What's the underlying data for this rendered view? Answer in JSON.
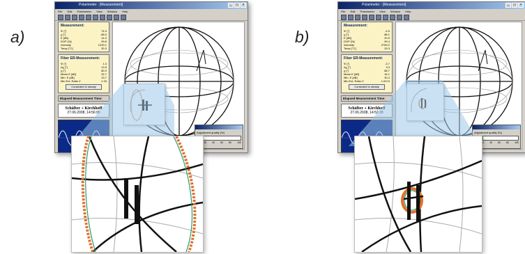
{
  "panels": [
    {
      "letter": "a)",
      "app_title": "Polarimeter - [Measurement]",
      "menu": [
        "File",
        "Edit",
        "Polarimeter",
        "View",
        "Window",
        "Help"
      ],
      "measurement": {
        "title": "Measurement:",
        "rows": [
          {
            "k": "Ψ [°]",
            "v": "74.3"
          },
          {
            "k": "χ [°]",
            "v": "-68.0"
          },
          {
            "k": "E [dB]",
            "v": "14.3"
          },
          {
            "k": "DOP [%]",
            "v": "99.8"
          },
          {
            "k": "Intensity",
            "v": "1230.1"
          },
          {
            "k": "Temp [°C]",
            "v": "30.3"
          }
        ]
      },
      "fiber": {
        "title": "Fiber ER-Measurement:",
        "rows": [
          {
            "k": "Ψ [°]",
            "v": "1.3"
          },
          {
            "k": "Δχ [°]",
            "v": "13.5"
          },
          {
            "k": "χ [°]",
            "v": "80.3"
          },
          {
            "k": "Mean E [dB]",
            "v": "32.7"
          },
          {
            "k": "Min. E [dB]",
            "v": "13.7"
          },
          {
            "k": "Min Ext. Ratio V",
            "v": "1.33"
          }
        ],
        "button": "Constraint to steady"
      },
      "elapsed": "Elapsed Measurement Time:",
      "name": "Schäfter + Kirchhoff",
      "date": "27.06.2008, 14:56:00",
      "adjust_label": "Adjustment quality [%]",
      "adjust_quality": 0.0,
      "adjust_ticks": [
        "0",
        "20",
        "40",
        "60",
        "80",
        "100"
      ]
    },
    {
      "letter": "b)",
      "app_title": "Polarimeter - [Measurement]",
      "menu": [
        "File",
        "Edit",
        "Polarimeter",
        "View",
        "Window",
        "Help"
      ],
      "measurement": {
        "title": "Measurement:",
        "rows": [
          {
            "k": "Ψ [°]",
            "v": "-4.9"
          },
          {
            "k": "χ [°]",
            "v": "88.1"
          },
          {
            "k": "E [dB]",
            "v": "20.9"
          },
          {
            "k": "DOP [%]",
            "v": "99.4"
          },
          {
            "k": "Intensity",
            "v": "2769.2"
          },
          {
            "k": "Temp [°C]",
            "v": "29.3"
          }
        ]
      },
      "fiber": {
        "title": "Fiber ER-Measurement:",
        "rows": [
          {
            "k": "Ψ [°]",
            "v": "-3.7"
          },
          {
            "k": "Δχ [°]",
            "v": "3.3"
          },
          {
            "k": "χ [°]",
            "v": "88.7"
          },
          {
            "k": "Mean E [dB]",
            "v": "16.1"
          },
          {
            "k": "Min. E [dB]",
            "v": "30.4"
          },
          {
            "k": "Min Ext. Ratio V",
            "v": "1.5174"
          }
        ],
        "button": "Constraint to steady"
      },
      "elapsed": "Elapsed Measurement Time:",
      "name": "Schäfter + Kirchhoff",
      "date": "27.06.2008, 14:52:28",
      "adjust_label": "Adjustment quality [%]",
      "adjust_quality": 0.2,
      "adjust_ticks": [
        "0",
        "20",
        "40",
        "60",
        "80",
        "100"
      ]
    }
  ]
}
